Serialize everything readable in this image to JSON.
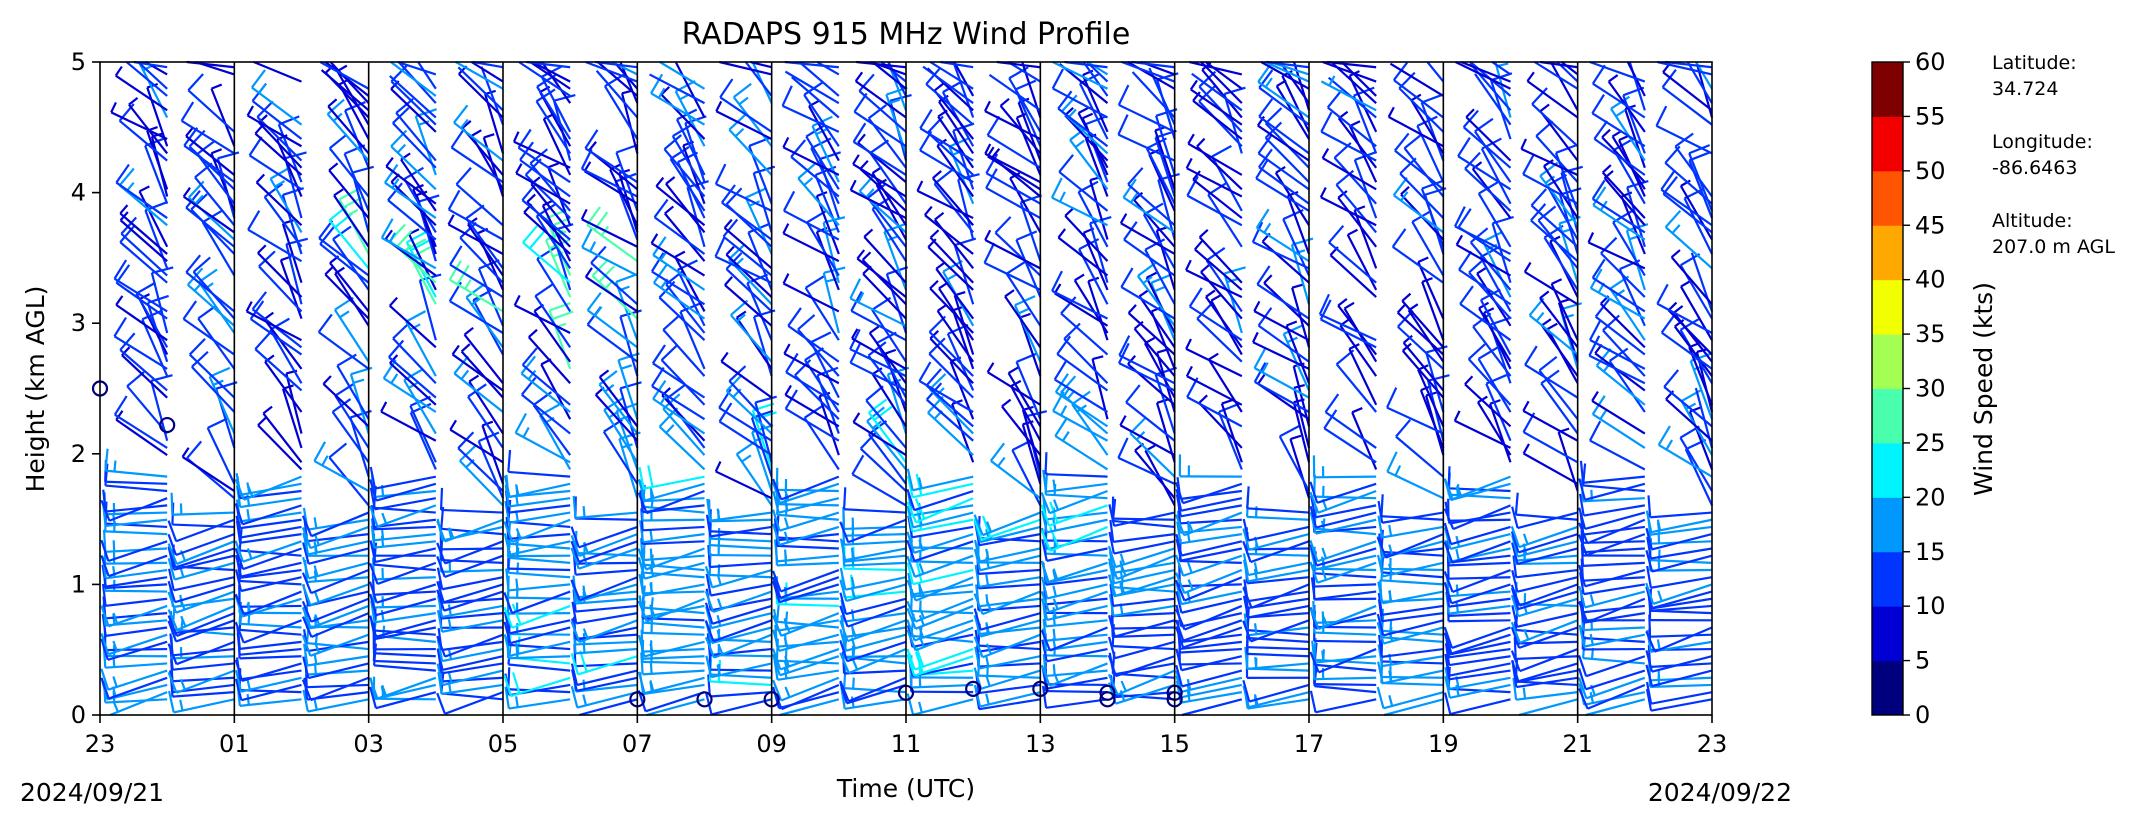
{
  "chart_data": {
    "type": "wind_barbs",
    "title": "RADAPS 915 MHz Wind Profile",
    "xlabel": "Time (UTC)",
    "ylabel": "Height (km AGL)",
    "x_ticks": [
      "23",
      "01",
      "03",
      "05",
      "07",
      "09",
      "11",
      "13",
      "15",
      "17",
      "19",
      "21",
      "23"
    ],
    "x_tick_hours_since_start": [
      0,
      2,
      4,
      6,
      8,
      10,
      12,
      14,
      16,
      18,
      20,
      22,
      24
    ],
    "y_ticks": [
      "0",
      "1",
      "2",
      "3",
      "4",
      "5"
    ],
    "ylim": [
      0,
      5
    ],
    "start_date": "2024/09/21",
    "end_date": "2024/09/22",
    "colorbar": {
      "label": "Wind Speed (kts)",
      "ticks": [
        "0",
        "5",
        "10",
        "15",
        "20",
        "25",
        "30",
        "35",
        "40",
        "45",
        "50",
        "55",
        "60"
      ],
      "colors": [
        "#00007f",
        "#0000d4",
        "#0034ff",
        "#0098ff",
        "#00f4ff",
        "#49ffad",
        "#a3ff53",
        "#f2ff00",
        "#ffa800",
        "#ff5400",
        "#f20000",
        "#7f0000"
      ]
    },
    "profile_times_hours": [
      0,
      1,
      2,
      3,
      4,
      5,
      6,
      7,
      8,
      9,
      10,
      11,
      12,
      13,
      14,
      15,
      16,
      17,
      18,
      19,
      20,
      21,
      22,
      23
    ],
    "station": {
      "latitude_label": "Latitude:",
      "latitude": "34.724",
      "longitude_label": "Longitude:",
      "longitude": "-86.6463",
      "altitude_label": "Altitude:",
      "altitude": "207.0 m AGL"
    }
  }
}
